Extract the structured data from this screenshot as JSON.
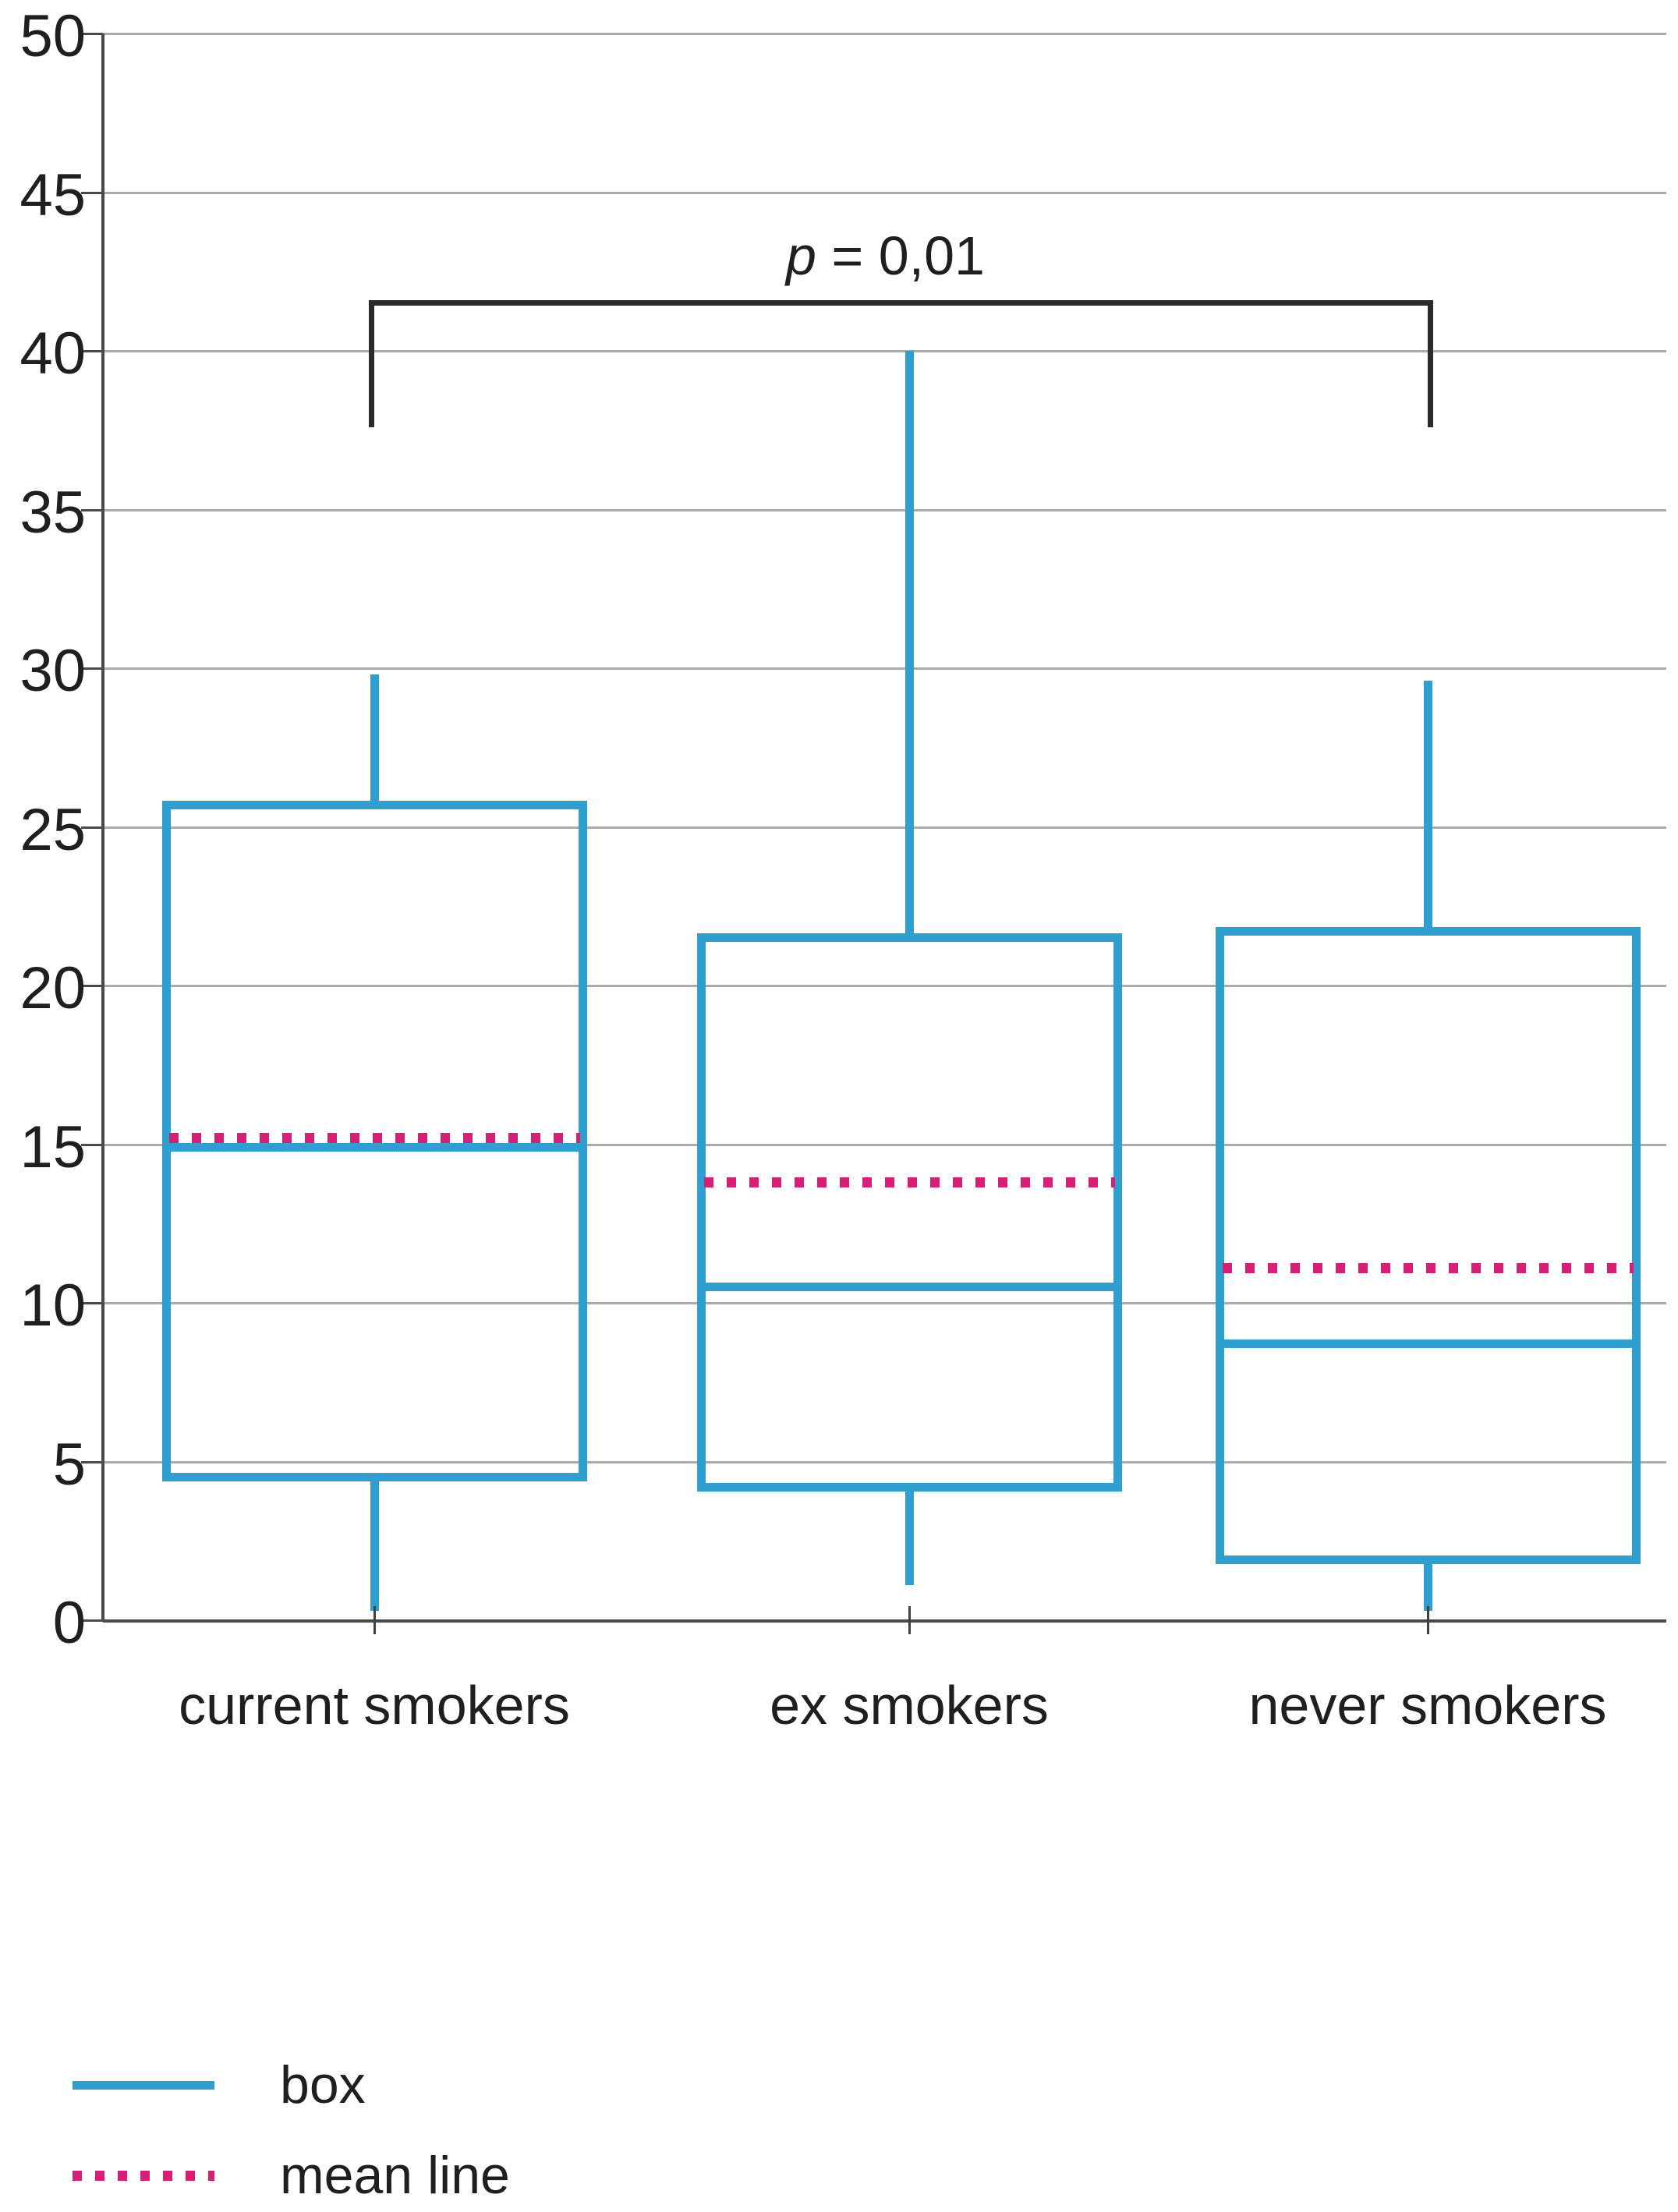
{
  "chart_data": {
    "type": "boxplot",
    "title": "",
    "xlabel": "",
    "ylabel": "",
    "ylim": [
      0,
      50
    ],
    "yticks": [
      0,
      5,
      10,
      15,
      20,
      25,
      30,
      35,
      40,
      45,
      50
    ],
    "grid": "horizontal",
    "categories": [
      "current smokers",
      "ex smokers",
      "never smokers"
    ],
    "series": [
      {
        "name": "current smokers",
        "whisker_low": 0.3,
        "q1": 4.5,
        "median": 14.9,
        "mean": 15.2,
        "q3": 25.7,
        "whisker_high": 29.8
      },
      {
        "name": "ex smokers",
        "whisker_low": 1.1,
        "q1": 4.2,
        "median": 10.5,
        "mean": 13.8,
        "q3": 21.5,
        "whisker_high": 40.0
      },
      {
        "name": "never smokers",
        "whisker_low": 0.3,
        "q1": 1.9,
        "median": 8.7,
        "mean": 11.1,
        "q3": 21.7,
        "whisker_high": 29.6
      }
    ],
    "annotation": {
      "label": "p = 0,01",
      "from": "current smokers",
      "to": "never smokers",
      "bracket_top_value": 41.6,
      "bracket_leg_bottom_value": 37.6
    },
    "colors": {
      "box": "#2f9fd0",
      "mean_line": "#d62078",
      "gridline": "#ababab",
      "axis": "#4a4a4a",
      "bracket": "#2b2b2b"
    },
    "legend": [
      {
        "label": "box",
        "style": "solid",
        "color": "#2f9fd0"
      },
      {
        "label": "mean line",
        "style": "dotted",
        "color": "#d62078"
      }
    ],
    "legend_position": "bottom-left"
  }
}
